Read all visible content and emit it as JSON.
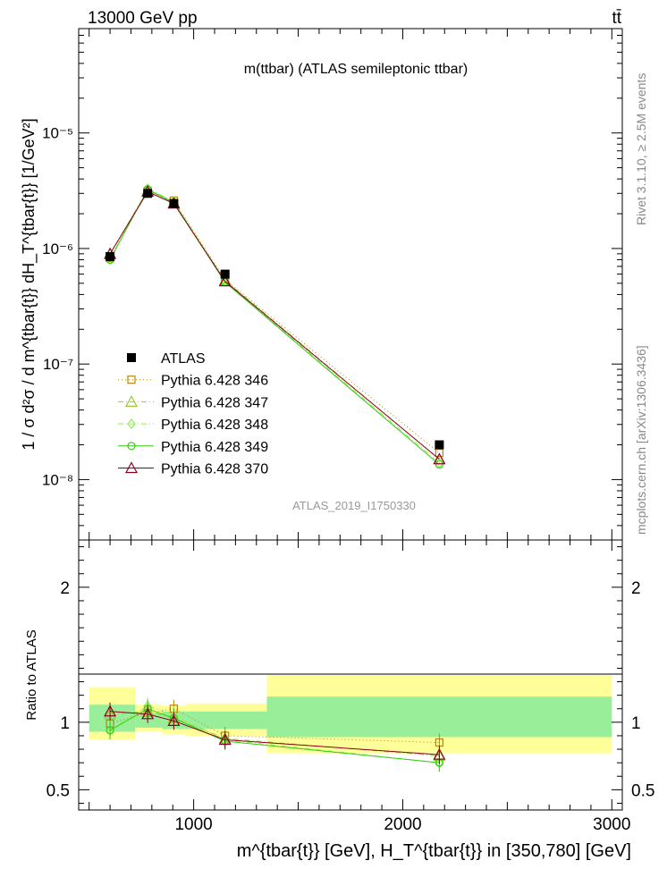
{
  "header": {
    "left": "13000 GeV pp",
    "right": "tt̄"
  },
  "side_text": {
    "top": "Rivet 3.1.10, ≥ 2.5M events",
    "bottom": "mcplots.cern.ch [arXiv:1306.3436]"
  },
  "chart_data": [
    {
      "type": "line",
      "title": "m(ttbar) (ATLAS semileptonic ttbar)",
      "watermark": "ATLAS_2019_I1750330",
      "ylabel": "1 / σ d²σ / d m^{tbar{t}} dH_T^{tbar{t}} [1/GeV²]",
      "yscale": "log",
      "xlim": [
        450,
        3050
      ],
      "ylim": [
        3e-09,
        8e-05
      ],
      "y_ticks": [
        {
          "v": 1e-08,
          "label": "10⁻⁸"
        },
        {
          "v": 1e-07,
          "label": "10⁻⁷"
        },
        {
          "v": 1e-06,
          "label": "10⁻⁶"
        },
        {
          "v": 1e-05,
          "label": "10⁻⁵"
        }
      ],
      "legend": {
        "placement": "bottom-left",
        "entries": [
          "ATLAS",
          "Pythia 6.428 346",
          "Pythia 6.428 347",
          "Pythia 6.428 348",
          "Pythia 6.428 349",
          "Pythia 6.428 370"
        ]
      },
      "x": [
        600,
        780,
        905,
        1150,
        2175
      ],
      "series": [
        {
          "name": "ATLAS",
          "color": "#000000",
          "marker": "square-filled",
          "values": [
            8.5e-07,
            3e-06,
            2.45e-06,
            6e-07,
            2e-08
          ]
        },
        {
          "name": "Pythia 6.428 346",
          "color": "#b8860b",
          "marker": "square-open",
          "dash": "dotted",
          "values": [
            8.3e-07,
            3.15e-06,
            2.6e-06,
            5.4e-07,
            1.7e-08
          ]
        },
        {
          "name": "Pythia 6.428 347",
          "color": "#9acd32",
          "marker": "triangle-open",
          "dash": "dashdot",
          "values": [
            8.9e-07,
            3.2e-06,
            2.5e-06,
            5.3e-07,
            1.5e-08
          ]
        },
        {
          "name": "Pythia 6.428 348",
          "color": "#90ee50",
          "marker": "diamond-open",
          "dash": "dashdot",
          "values": [
            8e-07,
            3.3e-06,
            2.55e-06,
            5.2e-07,
            1.4e-08
          ]
        },
        {
          "name": "Pythia 6.428 349",
          "color": "#33cc11",
          "marker": "circle-open",
          "dash": "solid",
          "values": [
            8e-07,
            3.25e-06,
            2.5e-06,
            5.1e-07,
            1.35e-08
          ]
        },
        {
          "name": "Pythia 6.428 370",
          "color": "#8b0020",
          "marker": "triangle-open",
          "dash": "solid",
          "values": [
            9e-07,
            3.1e-06,
            2.45e-06,
            5.2e-07,
            1.5e-08
          ]
        }
      ]
    },
    {
      "type": "line",
      "ylabel": "Ratio to ATLAS",
      "xlabel": "m^{tbar{t}} [GeV], H_T^{tbar{t}} in [350,780] [GeV]",
      "xlim": [
        450,
        3050
      ],
      "ylim": [
        0.35,
        2.35
      ],
      "x_ticks": [
        {
          "v": 1000,
          "label": "1000"
        },
        {
          "v": 2000,
          "label": "2000"
        },
        {
          "v": 3000,
          "label": "3000"
        }
      ],
      "y_ticks": [
        {
          "v": 0.5,
          "label": "0.5"
        },
        {
          "v": 1,
          "label": "1"
        },
        {
          "v": 2,
          "label": "2"
        }
      ],
      "bands": [
        {
          "x0": 500,
          "x1": 720,
          "stat": [
            0.93,
            1.13
          ],
          "total": [
            0.87,
            1.26
          ]
        },
        {
          "x0": 720,
          "x1": 850,
          "stat": [
            0.96,
            1.07
          ],
          "total": [
            0.93,
            1.13
          ]
        },
        {
          "x0": 850,
          "x1": 960,
          "stat": [
            0.95,
            1.08
          ],
          "total": [
            0.91,
            1.12
          ]
        },
        {
          "x0": 960,
          "x1": 1350,
          "stat": [
            0.95,
            1.08
          ],
          "total": [
            0.9,
            1.14
          ]
        },
        {
          "x0": 1350,
          "x1": 3000,
          "stat": [
            0.89,
            1.19
          ],
          "total": [
            0.77,
            1.35
          ]
        }
      ],
      "x": [
        600,
        780,
        905,
        1150,
        2175
      ],
      "series": [
        {
          "name": "Pythia 6.428 346",
          "color": "#b8860b",
          "values": [
            0.99,
            1.07,
            1.1,
            0.9,
            0.85
          ]
        },
        {
          "name": "Pythia 6.428 347",
          "color": "#9acd32",
          "values": [
            1.06,
            1.08,
            1.03,
            0.88,
            0.75
          ]
        },
        {
          "name": "Pythia 6.428 348",
          "color": "#90ee50",
          "values": [
            0.94,
            1.12,
            1.05,
            0.87,
            0.7
          ]
        },
        {
          "name": "Pythia 6.428 349",
          "color": "#33cc11",
          "values": [
            0.94,
            1.1,
            1.03,
            0.86,
            0.7
          ]
        },
        {
          "name": "Pythia 6.428 370",
          "color": "#8b0020",
          "values": [
            1.08,
            1.06,
            1.01,
            0.87,
            0.76
          ]
        }
      ]
    }
  ]
}
